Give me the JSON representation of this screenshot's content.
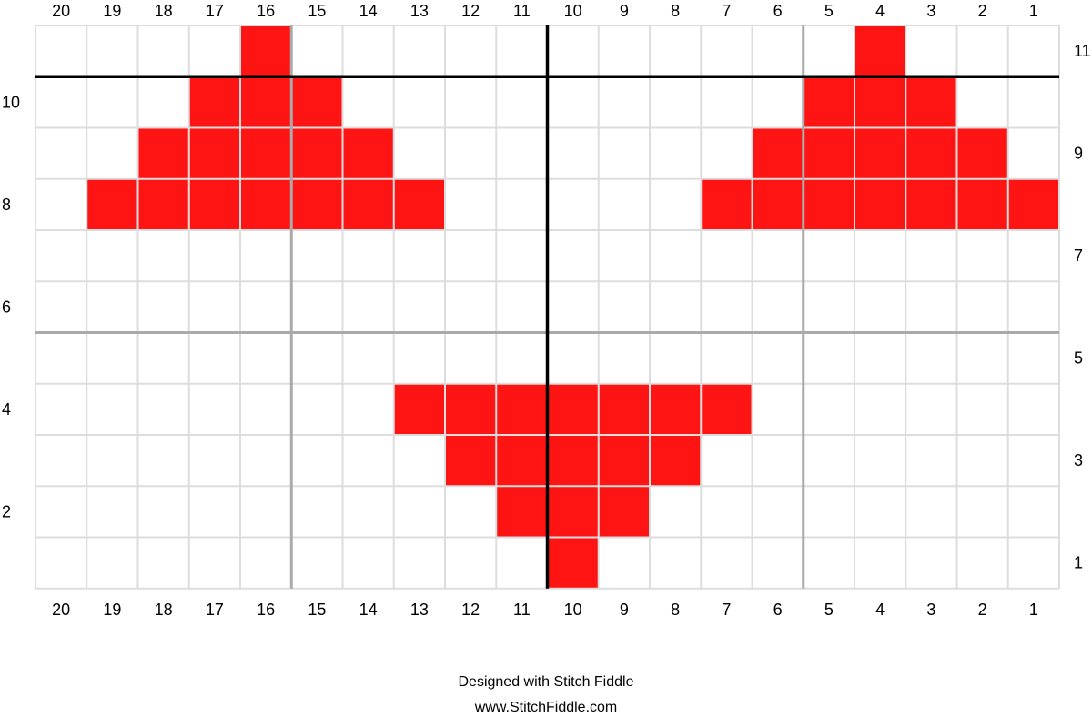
{
  "chart_data": {
    "type": "heatmap",
    "columns": 20,
    "rows": 11,
    "column_labels": [
      "20",
      "19",
      "18",
      "17",
      "16",
      "15",
      "14",
      "13",
      "12",
      "11",
      "10",
      "9",
      "8",
      "7",
      "6",
      "5",
      "4",
      "3",
      "2",
      "1"
    ],
    "row_labels_left": [
      "10",
      "8",
      "6",
      "4",
      "2"
    ],
    "row_labels_right": [
      "11",
      "9",
      "7",
      "5",
      "3",
      "1"
    ],
    "stitch_color": "#ff1414",
    "empty_color": "#ffffff",
    "filled_cells": [
      {
        "row": 11,
        "columns": [
          16,
          4
        ]
      },
      {
        "row": 10,
        "columns": [
          17,
          16,
          15,
          5,
          4,
          3
        ]
      },
      {
        "row": 9,
        "columns": [
          18,
          17,
          16,
          15,
          14,
          6,
          5,
          4,
          3,
          2
        ]
      },
      {
        "row": 8,
        "columns": [
          19,
          18,
          17,
          16,
          15,
          14,
          13,
          7,
          6,
          5,
          4,
          3,
          2,
          1
        ]
      },
      {
        "row": 4,
        "columns": [
          13,
          12,
          11,
          10,
          9,
          8,
          7
        ]
      },
      {
        "row": 3,
        "columns": [
          12,
          11,
          10,
          9,
          8
        ]
      },
      {
        "row": 2,
        "columns": [
          11,
          10,
          9
        ]
      },
      {
        "row": 1,
        "columns": [
          10
        ]
      }
    ]
  },
  "footer": {
    "designed_with": "Designed with Stitch Fiddle",
    "website": "www.StitchFiddle.com"
  }
}
